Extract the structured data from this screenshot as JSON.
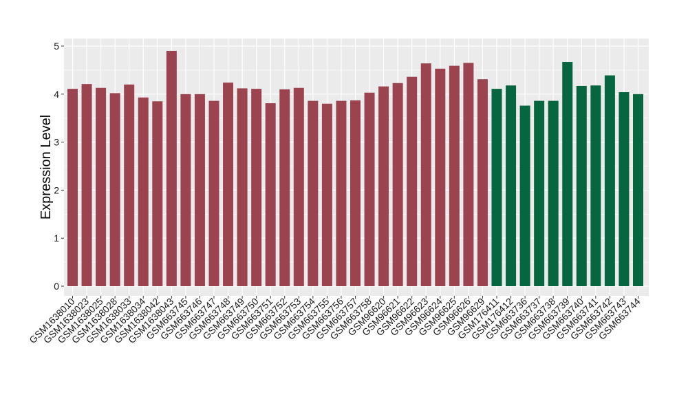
{
  "chart_data": {
    "type": "bar",
    "title": "",
    "xlabel": "",
    "ylabel": "Expression Level",
    "ylim": [
      0,
      5.15
    ],
    "yticks": [
      0,
      1,
      2,
      3,
      4,
      5
    ],
    "grid": true,
    "legend": "none",
    "colors": {
      "group_a": "#9b4450",
      "group_b": "#056640",
      "panel_bg": "#ebebeb",
      "grid": "#ffffff"
    },
    "categories": [
      "GSM1638010",
      "GSM1638023",
      "GSM1638025",
      "GSM1638028",
      "GSM1638033",
      "GSM1638034",
      "GSM1638042",
      "GSM1638043",
      "GSM663745",
      "GSM663746",
      "GSM663747",
      "GSM663748",
      "GSM663749",
      "GSM663750",
      "GSM663751",
      "GSM663752",
      "GSM663753",
      "GSM663754",
      "GSM663755",
      "GSM663756",
      "GSM663757",
      "GSM663758",
      "GSM96620",
      "GSM96621",
      "GSM96622",
      "GSM96623",
      "GSM96624",
      "GSM96625",
      "GSM96626",
      "GSM96629",
      "GSM176411",
      "GSM176412",
      "GSM663736",
      "GSM663737",
      "GSM663738",
      "GSM663739",
      "GSM663740",
      "GSM663741",
      "GSM663742",
      "GSM663743",
      "GSM663744"
    ],
    "values": [
      4.11,
      4.21,
      4.13,
      4.02,
      4.2,
      3.93,
      3.85,
      4.9,
      4.0,
      4.0,
      3.86,
      4.24,
      4.12,
      4.11,
      3.81,
      4.1,
      4.13,
      3.86,
      3.8,
      3.86,
      3.87,
      4.03,
      4.16,
      4.23,
      4.36,
      4.64,
      4.53,
      4.59,
      4.65,
      4.31,
      4.11,
      4.18,
      3.76,
      3.86,
      3.86,
      4.67,
      4.17,
      4.18,
      4.39,
      4.04,
      4.0
    ],
    "groups": [
      "a",
      "a",
      "a",
      "a",
      "a",
      "a",
      "a",
      "a",
      "a",
      "a",
      "a",
      "a",
      "a",
      "a",
      "a",
      "a",
      "a",
      "a",
      "a",
      "a",
      "a",
      "a",
      "a",
      "a",
      "a",
      "a",
      "a",
      "a",
      "a",
      "a",
      "b",
      "b",
      "b",
      "b",
      "b",
      "b",
      "b",
      "b",
      "b",
      "b",
      "b"
    ]
  }
}
